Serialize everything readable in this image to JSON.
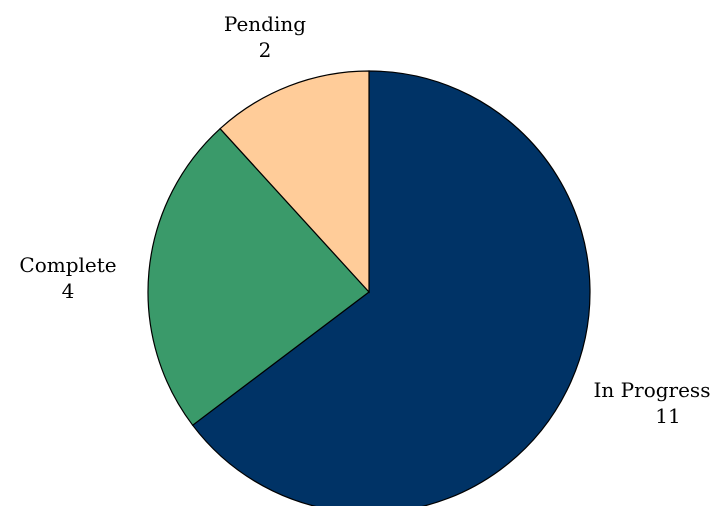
{
  "chart_data": {
    "type": "pie",
    "title": "",
    "slices": [
      {
        "label": "In Progress",
        "value": 11,
        "value_label": "11",
        "color": "#003366"
      },
      {
        "label": "Complete",
        "value": 4,
        "value_label": "4",
        "color": "#3a9a6a"
      },
      {
        "label": "Pending",
        "value": 2,
        "value_label": "2",
        "color": "#ffcc99"
      }
    ],
    "start": "12 o'clock",
    "direction": "clockwise",
    "slice_border_color": "#000000",
    "legend": "none",
    "labels": "outside, category name with value below"
  }
}
